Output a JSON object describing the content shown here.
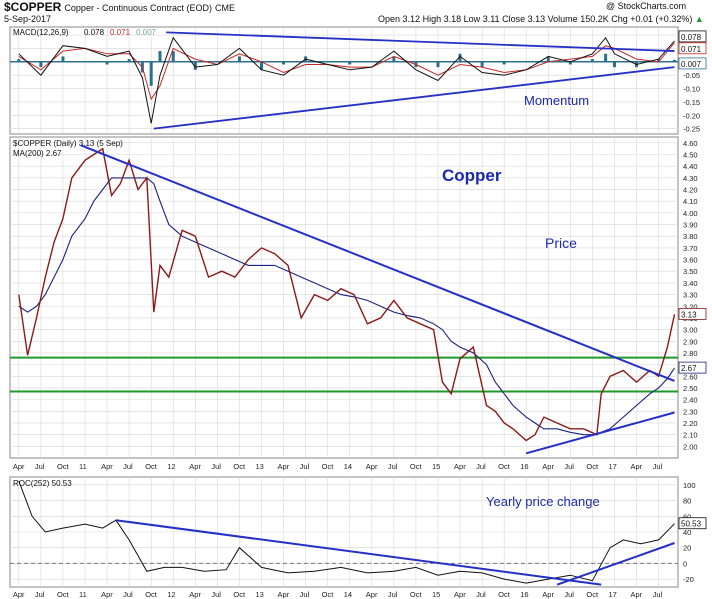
{
  "header": {
    "symbol": "$COPPER",
    "name": "Copper - Continuous Contract (EOD)",
    "exchange": "CME",
    "date": "5-Sep-2017",
    "open_label": "Open",
    "open": "3.12",
    "high_label": "High",
    "high": "3.18",
    "low_label": "Low",
    "low": "3.11",
    "close_label": "Close",
    "close": "3.13",
    "volume_label": "Volume",
    "volume": "150.2K",
    "chg_label": "Chg",
    "chg": "+0.01 (+0.32%)",
    "chg_arrow": "▲",
    "watermark": "@ StockCharts.com"
  },
  "colors": {
    "price_line": "#8b1a1a",
    "ma_line": "#1a237e",
    "trendline": "#2430c8",
    "support": "#1f9a2a",
    "macd_hist": "#2b6f8f",
    "grid": "#d8d8d8",
    "annotation": "#1a2aa8"
  },
  "chart_data": [
    {
      "type": "line",
      "panel": "MACD",
      "legend": {
        "label": "MACD(12,26,9)",
        "macd": "0.078",
        "signal": "0.071",
        "hist": "0.007"
      },
      "annotation": "Momentum",
      "ylim": [
        -0.27,
        0.13
      ],
      "y_ticks": [
        "0.10",
        "0.05",
        "0.00",
        "-0.05",
        "-0.10",
        "-0.15",
        "-0.20",
        "-0.25"
      ],
      "last_values": [
        "0.078",
        "0.071",
        "0.007"
      ],
      "trendlines": [
        {
          "x": [
            2011.78,
            2017.68
          ],
          "y": [
            -0.25,
            -0.02
          ]
        },
        {
          "x": [
            2011.92,
            2017.68
          ],
          "y": [
            0.11,
            0.04
          ]
        }
      ],
      "x": [
        2010.25,
        2010.5,
        2010.75,
        2011.0,
        2011.25,
        2011.5,
        2011.65,
        2011.75,
        2011.85,
        2012.0,
        2012.25,
        2012.5,
        2012.75,
        2013.0,
        2013.25,
        2013.5,
        2013.75,
        2014.0,
        2014.25,
        2014.5,
        2014.75,
        2015.0,
        2015.25,
        2015.5,
        2015.75,
        2016.0,
        2016.25,
        2016.5,
        2016.75,
        2016.9,
        2017.0,
        2017.25,
        2017.5,
        2017.68
      ],
      "macd": [
        0.03,
        -0.05,
        0.06,
        0.05,
        0.02,
        0.04,
        -0.06,
        -0.23,
        -0.05,
        0.09,
        -0.02,
        -0.01,
        0.05,
        -0.03,
        -0.05,
        0.01,
        -0.01,
        -0.03,
        -0.02,
        0.04,
        -0.03,
        -0.07,
        0.02,
        -0.04,
        -0.05,
        -0.03,
        0.02,
        0.0,
        0.03,
        0.09,
        0.03,
        -0.01,
        0.01,
        0.078
      ],
      "signal": [
        0.02,
        -0.03,
        0.04,
        0.05,
        0.03,
        0.03,
        -0.02,
        -0.14,
        -0.09,
        0.05,
        0.01,
        -0.01,
        0.03,
        0.0,
        -0.04,
        -0.01,
        -0.01,
        -0.02,
        -0.02,
        0.02,
        -0.01,
        -0.05,
        -0.01,
        -0.02,
        -0.04,
        -0.03,
        0.0,
        0.01,
        0.02,
        0.06,
        0.05,
        0.01,
        0.0,
        0.071
      ]
    },
    {
      "type": "line",
      "panel": "Price",
      "legend": {
        "series": "$COPPER (Daily) 3.13 (5 Sep)",
        "ma": "MA(200) 2.67"
      },
      "annotations": [
        "Copper",
        "Price"
      ],
      "ylim": [
        1.9,
        4.65
      ],
      "y_ticks": [
        "4.60",
        "4.50",
        "4.40",
        "4.30",
        "4.20",
        "4.10",
        "4.00",
        "3.90",
        "3.80",
        "3.70",
        "3.60",
        "3.50",
        "3.40",
        "3.30",
        "3.20",
        "3.10",
        "3.00",
        "2.90",
        "2.80",
        "2.70",
        "2.60",
        "2.50",
        "2.40",
        "2.30",
        "2.20",
        "2.10",
        "2.00"
      ],
      "last_values": [
        "3.13",
        "2.67"
      ],
      "support_levels": [
        2.76,
        2.47
      ],
      "trendlines": [
        {
          "x": [
            2010.95,
            2017.68
          ],
          "y": [
            4.58,
            2.56
          ]
        },
        {
          "x": [
            2016.0,
            2017.68
          ],
          "y": [
            1.94,
            2.29
          ]
        }
      ],
      "x": [
        2010.25,
        2010.35,
        2010.45,
        2010.55,
        2010.65,
        2010.75,
        2010.85,
        2011.0,
        2011.1,
        2011.2,
        2011.3,
        2011.4,
        2011.5,
        2011.6,
        2011.7,
        2011.78,
        2011.85,
        2011.95,
        2012.1,
        2012.25,
        2012.4,
        2012.55,
        2012.7,
        2012.85,
        2013.0,
        2013.15,
        2013.3,
        2013.45,
        2013.6,
        2013.75,
        2013.9,
        2014.05,
        2014.2,
        2014.35,
        2014.5,
        2014.65,
        2014.8,
        2014.95,
        2015.05,
        2015.15,
        2015.25,
        2015.4,
        2015.55,
        2015.65,
        2015.75,
        2015.85,
        2016.0,
        2016.1,
        2016.2,
        2016.35,
        2016.5,
        2016.65,
        2016.8,
        2016.85,
        2016.95,
        2017.1,
        2017.25,
        2017.4,
        2017.5,
        2017.6,
        2017.68
      ],
      "price": [
        3.3,
        2.78,
        3.1,
        3.45,
        3.75,
        3.95,
        4.3,
        4.45,
        4.5,
        4.55,
        4.15,
        4.25,
        4.45,
        4.2,
        4.3,
        3.15,
        3.55,
        3.45,
        3.85,
        3.8,
        3.45,
        3.5,
        3.45,
        3.6,
        3.7,
        3.65,
        3.55,
        3.1,
        3.3,
        3.25,
        3.35,
        3.3,
        3.05,
        3.1,
        3.25,
        3.1,
        3.05,
        3.0,
        2.55,
        2.45,
        2.75,
        2.85,
        2.35,
        2.3,
        2.2,
        2.15,
        2.05,
        2.1,
        2.25,
        2.2,
        2.15,
        2.15,
        2.1,
        2.45,
        2.6,
        2.65,
        2.55,
        2.65,
        2.6,
        2.85,
        3.13
      ],
      "ma200": [
        3.2,
        3.15,
        3.2,
        3.3,
        3.45,
        3.6,
        3.8,
        3.95,
        4.1,
        4.2,
        4.3,
        4.3,
        4.3,
        4.3,
        4.3,
        4.25,
        4.1,
        3.9,
        3.8,
        3.75,
        3.7,
        3.65,
        3.6,
        3.55,
        3.55,
        3.55,
        3.5,
        3.45,
        3.4,
        3.35,
        3.3,
        3.28,
        3.25,
        3.2,
        3.15,
        3.12,
        3.1,
        3.05,
        3.0,
        2.9,
        2.85,
        2.8,
        2.7,
        2.55,
        2.45,
        2.35,
        2.25,
        2.2,
        2.15,
        2.15,
        2.12,
        2.1,
        2.1,
        2.12,
        2.15,
        2.25,
        2.35,
        2.45,
        2.5,
        2.58,
        2.67
      ]
    },
    {
      "type": "line",
      "panel": "ROC",
      "legend": {
        "label": "ROC(252)",
        "value": "50.53"
      },
      "annotation": "Yearly price change",
      "ylim": [
        -30,
        110
      ],
      "y_ticks": [
        "100",
        "80",
        "60",
        "40",
        "20",
        "0",
        "-20"
      ],
      "last_values": [
        "50.53"
      ],
      "zero_line": 0,
      "trendlines": [
        {
          "x": [
            2011.35,
            2016.85
          ],
          "y": [
            55,
            -27
          ]
        },
        {
          "x": [
            2016.35,
            2017.68
          ],
          "y": [
            -27,
            26
          ]
        }
      ],
      "x": [
        2010.25,
        2010.4,
        2010.55,
        2010.75,
        2011.0,
        2011.2,
        2011.35,
        2011.5,
        2011.7,
        2011.9,
        2012.1,
        2012.35,
        2012.6,
        2012.75,
        2013.0,
        2013.3,
        2013.6,
        2013.9,
        2014.2,
        2014.5,
        2014.75,
        2015.0,
        2015.25,
        2015.5,
        2015.75,
        2016.0,
        2016.25,
        2016.5,
        2016.75,
        2016.95,
        2017.1,
        2017.3,
        2017.5,
        2017.68
      ],
      "roc": [
        105,
        60,
        40,
        45,
        50,
        45,
        55,
        30,
        -10,
        -5,
        -5,
        -10,
        -8,
        20,
        -5,
        -12,
        -10,
        -5,
        -12,
        -10,
        -5,
        -15,
        -10,
        -12,
        -20,
        -25,
        -20,
        -15,
        -22,
        20,
        30,
        25,
        30,
        50.53
      ]
    }
  ],
  "x_axis": {
    "labels": [
      "Apr",
      "Jul",
      "Oct",
      "11",
      "Apr",
      "Jul",
      "Oct",
      "12",
      "Apr",
      "Jul",
      "Oct",
      "13",
      "Apr",
      "Jul",
      "Oct",
      "14",
      "Apr",
      "Jul",
      "Oct",
      "15",
      "Apr",
      "Jul",
      "Oct",
      "16",
      "Apr",
      "Jul",
      "Oct",
      "17",
      "Apr",
      "Jul"
    ],
    "positions": [
      2010.25,
      2010.5,
      2010.75,
      2011.0,
      2011.25,
      2011.5,
      2011.75,
      2012.0,
      2012.25,
      2012.5,
      2012.75,
      2013.0,
      2013.25,
      2013.5,
      2013.75,
      2014.0,
      2014.25,
      2014.5,
      2014.75,
      2015.0,
      2015.25,
      2015.5,
      2015.75,
      2016.0,
      2016.25,
      2016.5,
      2016.75,
      2017.0,
      2017.25,
      2017.5
    ]
  }
}
